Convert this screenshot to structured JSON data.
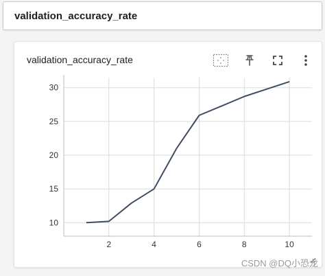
{
  "header": {
    "title": "validation_accuracy_rate"
  },
  "card": {
    "title": "validation_accuracy_rate",
    "tools": [
      "fit-domain-icon",
      "pin-icon",
      "fullscreen-icon",
      "more-vert-icon"
    ]
  },
  "watermark": {
    "text": "CSDN @DQ小恐龙"
  },
  "chart_data": {
    "type": "line",
    "title": "",
    "xlabel": "",
    "ylabel": "",
    "x_ticks": [
      2,
      4,
      6,
      8,
      10
    ],
    "y_ticks": [
      10,
      15,
      20,
      25,
      30
    ],
    "xlim": [
      0,
      11
    ],
    "ylim": [
      8,
      31.5
    ],
    "grid": true,
    "series": [
      {
        "color": "#3f4c63",
        "x": [
          1,
          2,
          3,
          4,
          5,
          6,
          7,
          8,
          9,
          10
        ],
        "y": [
          10.0,
          10.2,
          12.9,
          15.0,
          21.0,
          25.9,
          27.3,
          28.7,
          29.8,
          30.9
        ]
      }
    ]
  }
}
